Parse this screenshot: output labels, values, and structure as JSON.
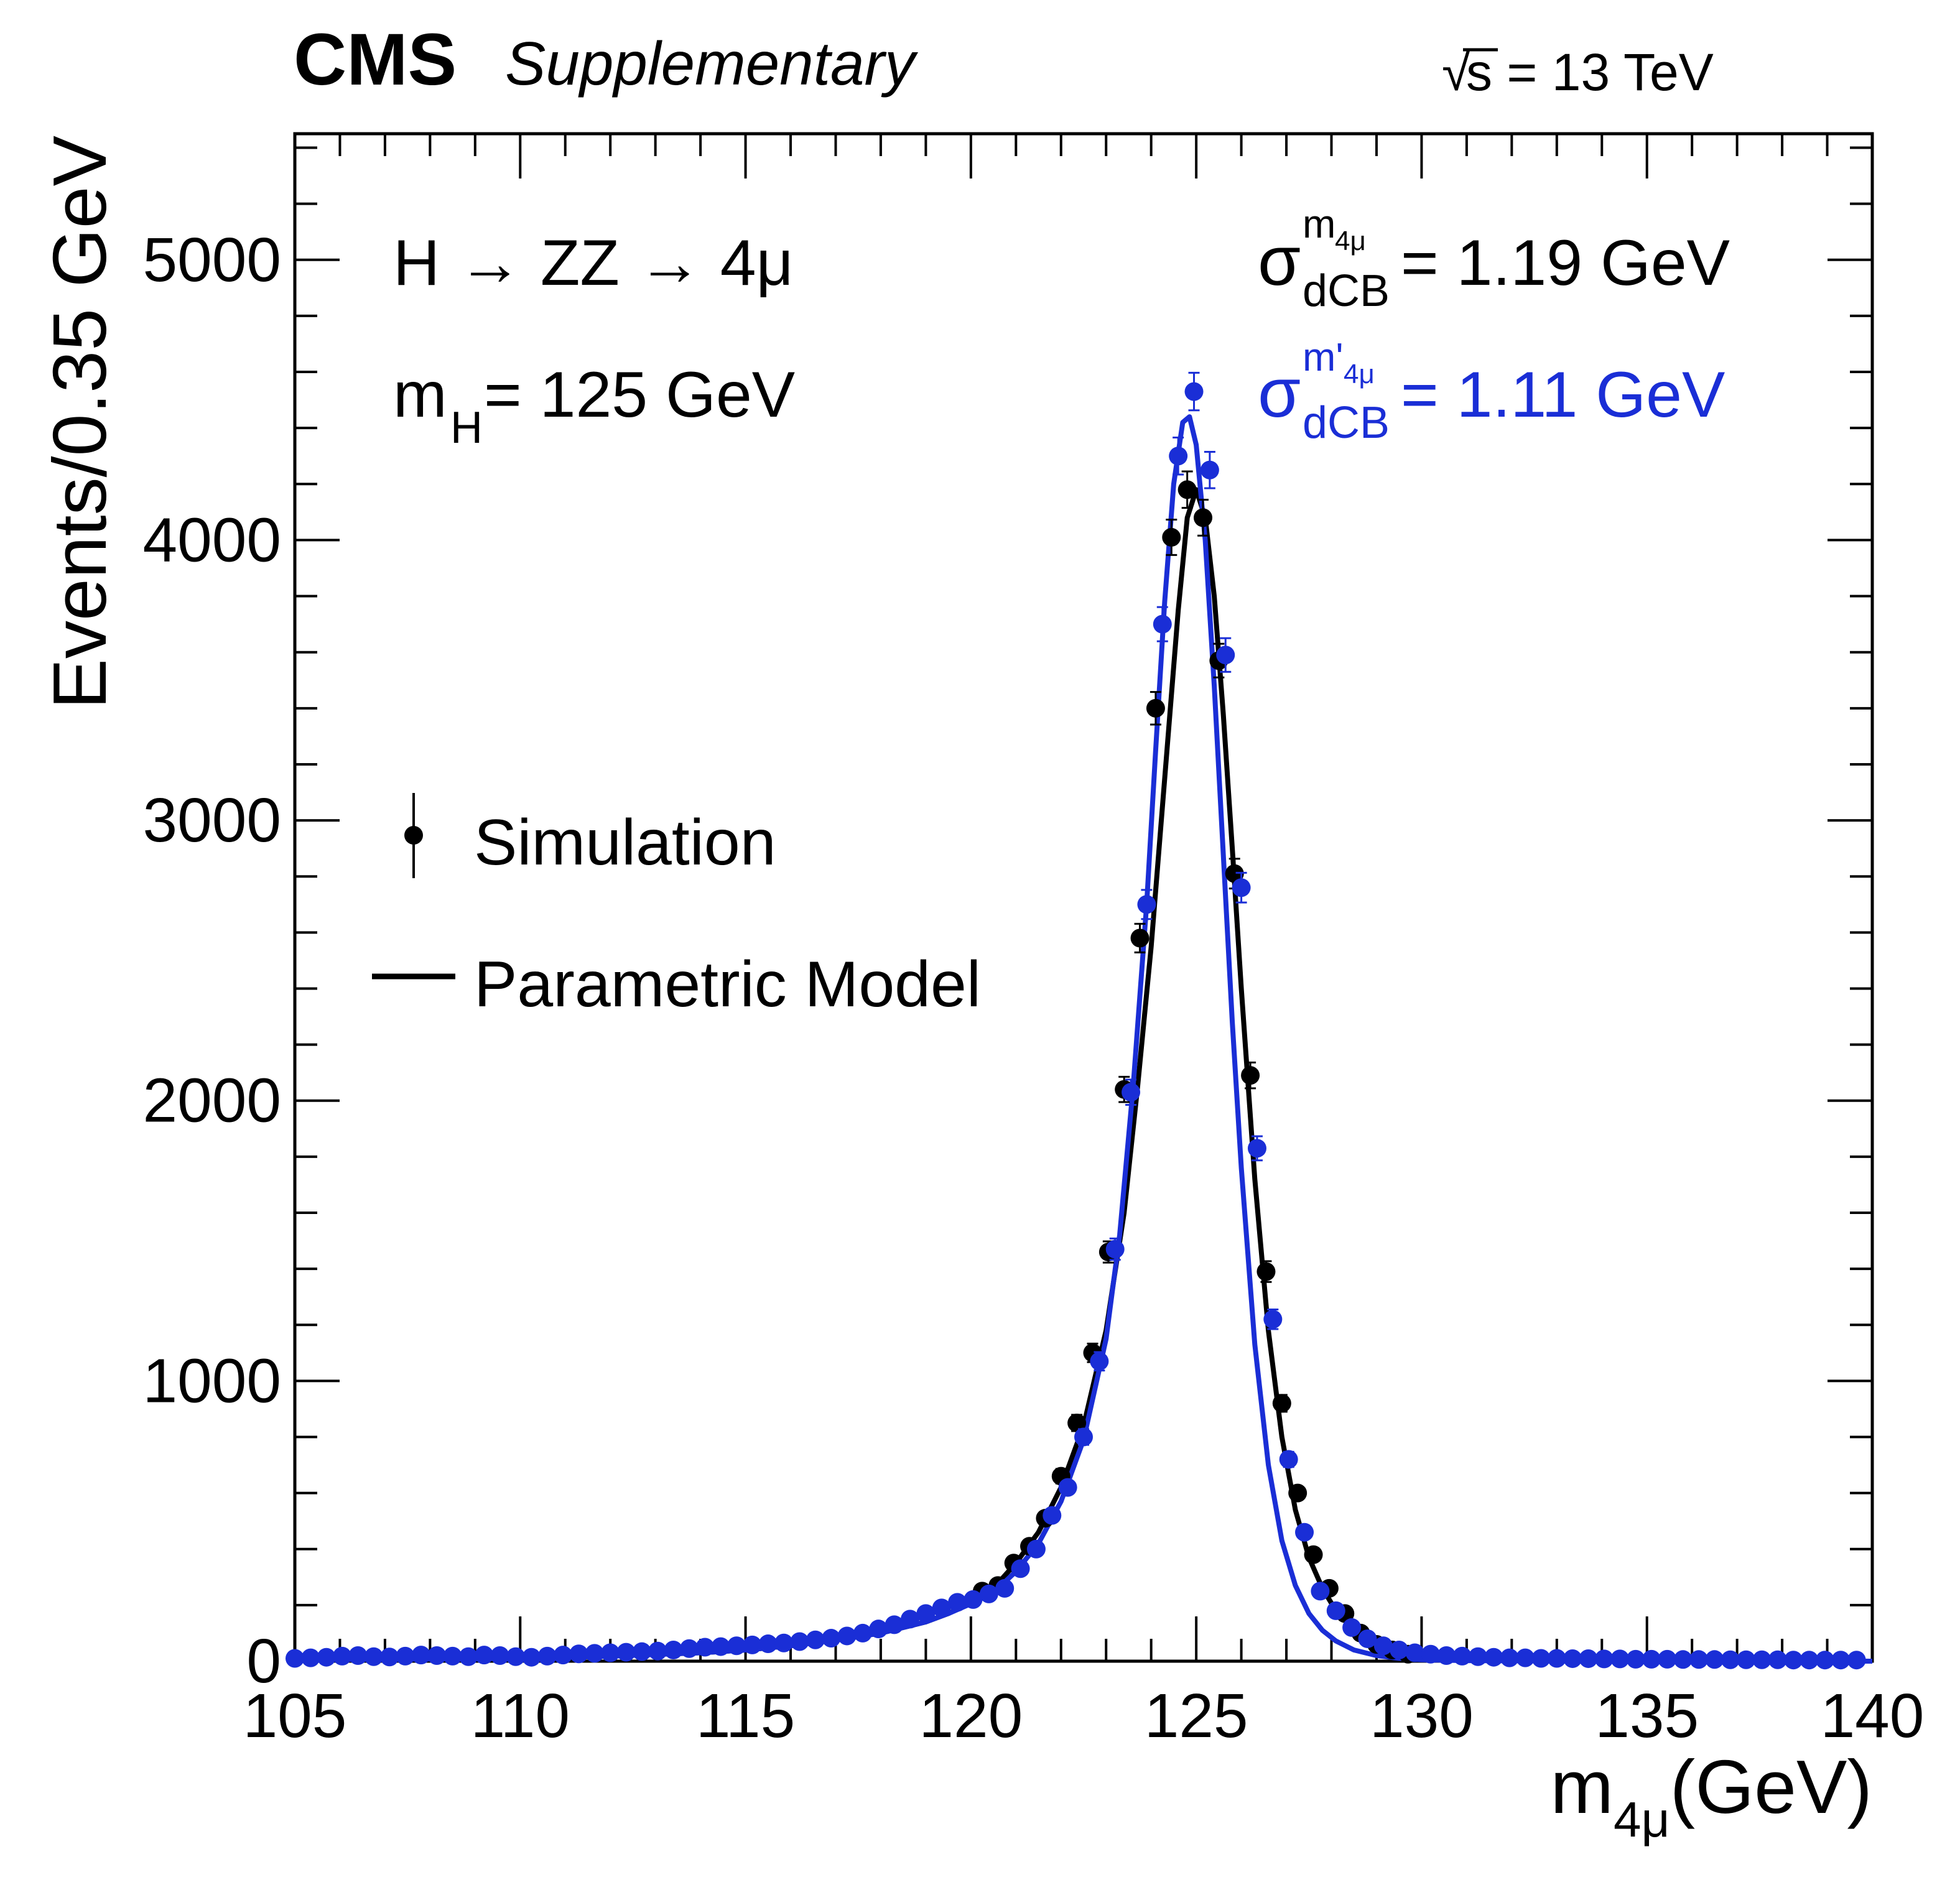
{
  "header": {
    "experiment": "CMS",
    "label": "Supplementary",
    "energy_sqrt": "√",
    "energy_rest": "s = 13 TeV"
  },
  "annotations": {
    "process": "H → ZZ → 4μ",
    "mass_m": "m",
    "mass_sub": "H",
    "mass_rest": " = 125 GeV",
    "sigma_black_sym": "σ",
    "sigma_black_sup": "m",
    "sigma_black_sup_sub": "4μ",
    "sigma_black_sub": "dCB",
    "sigma_black_value": " = 1.19 GeV",
    "sigma_blue_sym": "σ",
    "sigma_blue_sup": "m'",
    "sigma_blue_sup_sub": "4μ",
    "sigma_blue_sub": "dCB",
    "sigma_blue_value": " = 1.11 GeV"
  },
  "legend": {
    "simulation": "Simulation",
    "model": "Parametric Model"
  },
  "colors": {
    "black": "#000000",
    "blue": "#1a2ed6",
    "background": "#ffffff"
  },
  "chart_data": {
    "type": "scatter",
    "title": "",
    "xlabel_main": "m",
    "xlabel_sub": "4μ",
    "xlabel_unit": "(GeV)",
    "ylabel": "Events/0.35 GeV",
    "xlim": [
      105,
      140
    ],
    "ylim": [
      0,
      5450
    ],
    "xticks": [
      105,
      110,
      115,
      120,
      125,
      130,
      135,
      140
    ],
    "yticks": [
      0,
      1000,
      2000,
      3000,
      4000,
      5000
    ],
    "bin_width": 0.35,
    "series": [
      {
        "name": "m4mu (black)",
        "color": "#000000",
        "x": [
          120.25,
          120.6,
          120.95,
          121.3,
          121.65,
          122.0,
          122.35,
          122.7,
          123.05,
          123.4,
          123.75,
          124.1,
          124.45,
          124.8,
          125.15,
          125.5,
          125.85,
          126.2,
          126.55,
          126.9,
          127.25,
          127.6,
          127.95,
          128.3,
          128.65,
          129.0,
          129.35,
          129.7
        ],
        "y": [
          250,
          270,
          350,
          410,
          510,
          660,
          850,
          1100,
          1460,
          2040,
          2580,
          3400,
          4010,
          4180,
          4080,
          3570,
          2810,
          2090,
          1390,
          920,
          600,
          380,
          260,
          170,
          100,
          60,
          40,
          25
        ],
        "err": [
          16,
          17,
          19,
          20,
          23,
          26,
          29,
          33,
          38,
          45,
          51,
          58,
          63,
          65,
          64,
          60,
          53,
          46,
          37,
          30,
          25,
          20,
          16,
          13,
          10,
          8,
          6,
          5
        ]
      },
      {
        "name": "m'4mu (blue)",
        "color": "#1a2ed6",
        "x": [
          105.0,
          105.35,
          105.7,
          106.05,
          106.4,
          106.75,
          107.1,
          107.45,
          107.8,
          108.15,
          108.5,
          108.85,
          109.2,
          109.55,
          109.9,
          110.25,
          110.6,
          110.95,
          111.3,
          111.65,
          112.0,
          112.35,
          112.7,
          113.05,
          113.4,
          113.75,
          114.1,
          114.45,
          114.8,
          115.15,
          115.5,
          115.85,
          116.2,
          116.55,
          116.9,
          117.25,
          117.6,
          117.95,
          118.3,
          118.65,
          119.0,
          119.35,
          119.7,
          120.05,
          120.4,
          120.75,
          121.1,
          121.45,
          121.8,
          122.15,
          122.5,
          122.85,
          123.2,
          123.55,
          123.9,
          124.25,
          124.6,
          124.95,
          125.3,
          125.65,
          126.0,
          126.35,
          126.7,
          127.05,
          127.4,
          127.75,
          128.1,
          128.45,
          128.8,
          129.15,
          129.5,
          129.85,
          130.2,
          130.55,
          130.9,
          131.25,
          131.6,
          131.95,
          132.3,
          132.65,
          133.0,
          133.35,
          133.7,
          134.05,
          134.4,
          134.75,
          135.1,
          135.45,
          135.8,
          136.15,
          136.5,
          136.85,
          137.2,
          137.55,
          137.9,
          138.25,
          138.6,
          138.95,
          139.3,
          139.65
        ],
        "y": [
          10,
          12,
          14,
          18,
          20,
          16,
          15,
          18,
          22,
          20,
          18,
          16,
          22,
          20,
          16,
          14,
          18,
          22,
          26,
          28,
          30,
          32,
          34,
          36,
          40,
          45,
          50,
          52,
          55,
          58,
          62,
          65,
          70,
          76,
          82,
          90,
          100,
          115,
          130,
          150,
          170,
          190,
          210,
          220,
          240,
          260,
          330,
          400,
          520,
          620,
          800,
          1070,
          1470,
          2030,
          2700,
          3700,
          4300,
          4530,
          4250,
          3590,
          2760,
          1830,
          1220,
          720,
          460,
          250,
          180,
          120,
          80,
          55,
          40,
          30,
          25,
          20,
          18,
          16,
          14,
          12,
          12,
          10,
          10,
          9,
          9,
          8,
          8,
          7,
          7,
          7,
          6,
          6,
          6,
          5,
          5,
          5,
          5,
          4,
          4,
          4,
          4,
          4
        ],
        "err": [
          3,
          3,
          4,
          4,
          4,
          4,
          4,
          4,
          5,
          4,
          4,
          4,
          5,
          4,
          4,
          4,
          4,
          5,
          5,
          5,
          5,
          6,
          6,
          6,
          6,
          7,
          7,
          7,
          7,
          8,
          8,
          8,
          8,
          9,
          9,
          9,
          10,
          11,
          11,
          12,
          13,
          14,
          14,
          15,
          15,
          16,
          18,
          20,
          23,
          25,
          28,
          33,
          38,
          45,
          52,
          61,
          66,
          67,
          65,
          60,
          53,
          43,
          35,
          27,
          21,
          16,
          13,
          11,
          9,
          7,
          6,
          5,
          5,
          4,
          4,
          4,
          4,
          3,
          3,
          3,
          3,
          3,
          3,
          3,
          3,
          3,
          3,
          3,
          2,
          2,
          2,
          2,
          2,
          2,
          2,
          2,
          2,
          2,
          2,
          2
        ]
      }
    ],
    "models": [
      {
        "name": "Parametric Model (black)",
        "color": "#000000",
        "curve_x": [
          105,
          110,
          112,
          114,
          115,
          116,
          117,
          118,
          119,
          119.5,
          120,
          120.5,
          121,
          121.5,
          122,
          122.5,
          123,
          123.4,
          123.7,
          124,
          124.2,
          124.4,
          124.6,
          124.8,
          125,
          125.2,
          125.4,
          125.6,
          125.8,
          126,
          126.3,
          126.6,
          126.9,
          127.2,
          127.5,
          127.8,
          128.1,
          128.5,
          129,
          129.5,
          130,
          131,
          132,
          134,
          137,
          140
        ],
        "curve_y": [
          5,
          10,
          18,
          30,
          40,
          55,
          75,
          100,
          140,
          170,
          210,
          260,
          350,
          460,
          620,
          840,
          1180,
          1600,
          2050,
          2550,
          2950,
          3350,
          3750,
          4080,
          4180,
          4080,
          3800,
          3380,
          2900,
          2400,
          1720,
          1180,
          800,
          540,
          370,
          260,
          180,
          110,
          60,
          32,
          18,
          8,
          4,
          2,
          1,
          0
        ]
      },
      {
        "name": "Parametric Model (blue)",
        "color": "#1a2ed6",
        "curve_x": [
          105,
          110,
          112,
          114,
          115,
          116,
          117,
          118,
          119,
          119.5,
          120,
          120.5,
          121,
          121.5,
          122,
          122.5,
          123,
          123.3,
          123.6,
          123.9,
          124.1,
          124.3,
          124.5,
          124.7,
          124.85,
          125,
          125.2,
          125.4,
          125.6,
          125.8,
          126,
          126.3,
          126.6,
          126.9,
          127.2,
          127.5,
          127.8,
          128.1,
          128.5,
          129,
          129.5,
          130,
          131,
          132,
          134,
          137,
          140
        ],
        "curve_y": [
          5,
          10,
          18,
          30,
          40,
          55,
          75,
          100,
          140,
          170,
          205,
          245,
          320,
          420,
          570,
          790,
          1150,
          1520,
          2050,
          2700,
          3250,
          3780,
          4200,
          4420,
          4440,
          4340,
          4000,
          3480,
          2880,
          2280,
          1760,
          1130,
          700,
          430,
          270,
          170,
          110,
          72,
          40,
          20,
          10,
          5,
          2,
          1,
          0,
          0,
          0
        ]
      }
    ]
  }
}
